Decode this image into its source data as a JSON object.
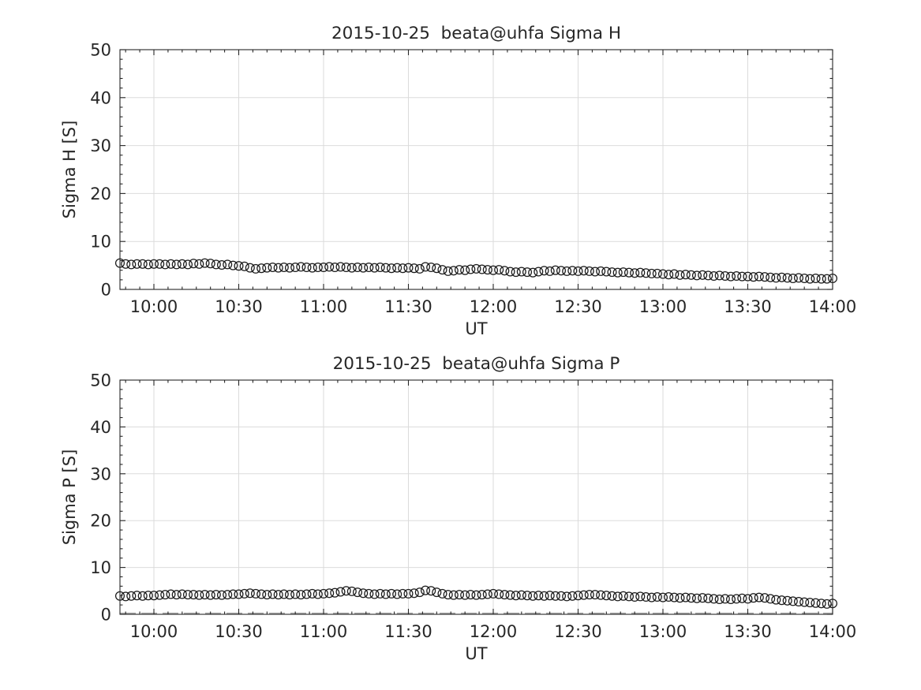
{
  "figure": {
    "background": "#ffffff",
    "axis_color": "#262626",
    "grid_color": "#dbdbdb",
    "marker_color": "#1a1a1a",
    "baseline_color": "#a8a8a8",
    "text_color": "#262626"
  },
  "chart_data": [
    {
      "type": "scatter",
      "title": "2015-10-25  beata@uhfa Sigma H",
      "xlabel": "UT",
      "ylabel": "Sigma H [S]",
      "marker": "open-circle",
      "grid": true,
      "ylim": [
        0,
        50
      ],
      "y_ticks": [
        0,
        10,
        20,
        30,
        40,
        50
      ],
      "y_minor_step": 2,
      "xlim_minutes": [
        588,
        840
      ],
      "x_ticks": [
        {
          "minutes": 600,
          "label": "10:00"
        },
        {
          "minutes": 630,
          "label": "10:30"
        },
        {
          "minutes": 660,
          "label": "11:00"
        },
        {
          "minutes": 690,
          "label": "11:30"
        },
        {
          "minutes": 720,
          "label": "12:00"
        },
        {
          "minutes": 750,
          "label": "12:30"
        },
        {
          "minutes": 780,
          "label": "13:00"
        },
        {
          "minutes": 810,
          "label": "13:30"
        },
        {
          "minutes": 840,
          "label": "14:00"
        }
      ],
      "x_minor_step_minutes": 5,
      "x_start_minutes": 588,
      "x_step_minutes": 2,
      "values": [
        5.5,
        5.3,
        5.2,
        5.3,
        5.3,
        5.2,
        5.3,
        5.3,
        5.2,
        5.3,
        5.2,
        5.3,
        5.2,
        5.4,
        5.3,
        5.5,
        5.4,
        5.2,
        5.1,
        5.2,
        5.0,
        4.9,
        4.8,
        4.5,
        4.3,
        4.4,
        4.5,
        4.6,
        4.5,
        4.6,
        4.5,
        4.6,
        4.7,
        4.6,
        4.5,
        4.6,
        4.6,
        4.7,
        4.6,
        4.7,
        4.6,
        4.5,
        4.6,
        4.5,
        4.6,
        4.5,
        4.6,
        4.5,
        4.4,
        4.5,
        4.4,
        4.5,
        4.4,
        4.3,
        4.7,
        4.6,
        4.4,
        4.1,
        3.8,
        3.9,
        4.1,
        4.0,
        4.2,
        4.3,
        4.2,
        4.1,
        4.0,
        4.1,
        3.9,
        3.7,
        3.6,
        3.7,
        3.6,
        3.5,
        3.7,
        3.9,
        3.8,
        4.0,
        3.9,
        3.8,
        3.9,
        3.8,
        3.9,
        3.8,
        3.7,
        3.8,
        3.7,
        3.6,
        3.5,
        3.6,
        3.5,
        3.4,
        3.5,
        3.4,
        3.3,
        3.3,
        3.2,
        3.1,
        3.2,
        3.0,
        3.1,
        3.0,
        2.9,
        3.0,
        2.9,
        2.8,
        2.9,
        2.8,
        2.7,
        2.8,
        2.7,
        2.7,
        2.6,
        2.7,
        2.6,
        2.5,
        2.4,
        2.5,
        2.4,
        2.3,
        2.4,
        2.3,
        2.2,
        2.3,
        2.2,
        2.2,
        2.3
      ]
    },
    {
      "type": "scatter",
      "title": "2015-10-25  beata@uhfa Sigma P",
      "xlabel": "UT",
      "ylabel": "Sigma P [S]",
      "marker": "open-circle",
      "grid": true,
      "ylim": [
        0,
        50
      ],
      "y_ticks": [
        0,
        10,
        20,
        30,
        40,
        50
      ],
      "y_minor_step": 2,
      "xlim_minutes": [
        588,
        840
      ],
      "x_ticks": [
        {
          "minutes": 600,
          "label": "10:00"
        },
        {
          "minutes": 630,
          "label": "10:30"
        },
        {
          "minutes": 660,
          "label": "11:00"
        },
        {
          "minutes": 690,
          "label": "11:30"
        },
        {
          "minutes": 720,
          "label": "12:00"
        },
        {
          "minutes": 750,
          "label": "12:30"
        },
        {
          "minutes": 780,
          "label": "13:00"
        },
        {
          "minutes": 810,
          "label": "13:30"
        },
        {
          "minutes": 840,
          "label": "14:00"
        }
      ],
      "x_minor_step_minutes": 5,
      "x_start_minutes": 588,
      "x_step_minutes": 2,
      "values": [
        3.9,
        3.8,
        3.9,
        4.0,
        3.9,
        4.0,
        4.0,
        4.1,
        4.2,
        4.3,
        4.2,
        4.3,
        4.2,
        4.2,
        4.1,
        4.2,
        4.1,
        4.2,
        4.1,
        4.2,
        4.3,
        4.3,
        4.4,
        4.5,
        4.4,
        4.3,
        4.2,
        4.3,
        4.2,
        4.3,
        4.2,
        4.3,
        4.2,
        4.3,
        4.4,
        4.3,
        4.4,
        4.5,
        4.6,
        4.8,
        5.0,
        4.9,
        4.7,
        4.5,
        4.4,
        4.3,
        4.4,
        4.3,
        4.4,
        4.3,
        4.4,
        4.4,
        4.5,
        4.7,
        5.1,
        5.0,
        4.7,
        4.4,
        4.2,
        4.1,
        4.2,
        4.1,
        4.2,
        4.1,
        4.2,
        4.3,
        4.4,
        4.3,
        4.2,
        4.1,
        4.0,
        4.1,
        4.0,
        3.9,
        4.0,
        3.9,
        4.0,
        3.9,
        3.9,
        3.8,
        3.9,
        4.0,
        4.1,
        4.2,
        4.2,
        4.1,
        4.0,
        3.9,
        3.8,
        3.9,
        3.8,
        3.7,
        3.8,
        3.7,
        3.6,
        3.7,
        3.6,
        3.7,
        3.6,
        3.5,
        3.6,
        3.5,
        3.4,
        3.5,
        3.4,
        3.3,
        3.2,
        3.3,
        3.2,
        3.3,
        3.4,
        3.3,
        3.5,
        3.6,
        3.5,
        3.3,
        3.1,
        3.0,
        2.9,
        2.8,
        2.7,
        2.6,
        2.5,
        2.4,
        2.3,
        2.2,
        2.3
      ],
      "baseline_value": 0.2
    }
  ]
}
